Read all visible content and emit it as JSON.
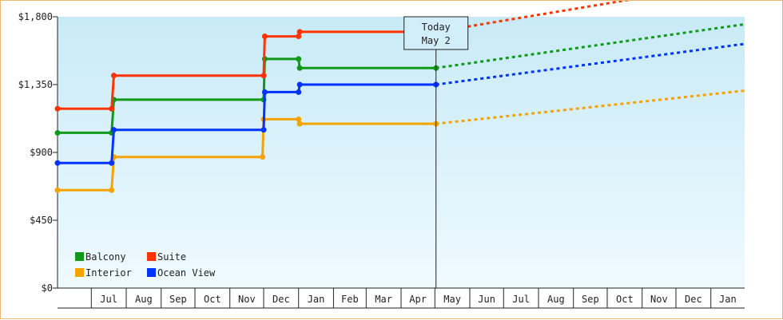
{
  "chart_data": {
    "type": "line",
    "step": true,
    "title": "",
    "xlabel": "",
    "ylabel": "",
    "ylim": [
      0,
      1800
    ],
    "yticks": [
      0,
      450,
      900,
      1350,
      1800
    ],
    "ytick_labels": [
      "$0",
      "$450",
      "$900",
      "$1,350",
      "$1,800"
    ],
    "x_months": [
      {
        "label": "Jul",
        "start": "2023-07-01"
      },
      {
        "label": "Aug",
        "start": "2023-08-01"
      },
      {
        "label": "Sep",
        "start": "2023-09-01"
      },
      {
        "label": "Oct",
        "start": "2023-10-01"
      },
      {
        "label": "Nov",
        "start": "2023-11-01"
      },
      {
        "label": "Dec",
        "start": "2023-12-01"
      },
      {
        "label": "Jan",
        "start": "2024-01-01"
      },
      {
        "label": "Feb",
        "start": "2024-02-01"
      },
      {
        "label": "Mar",
        "start": "2024-03-01"
      },
      {
        "label": "Apr",
        "start": "2024-04-01"
      },
      {
        "label": "May",
        "start": "2024-05-01"
      },
      {
        "label": "Jun",
        "start": "2024-06-01"
      },
      {
        "label": "Jul",
        "start": "2024-07-01"
      },
      {
        "label": "Aug",
        "start": "2024-08-01"
      },
      {
        "label": "Sep",
        "start": "2024-09-01"
      },
      {
        "label": "Oct",
        "start": "2024-10-01"
      },
      {
        "label": "Nov",
        "start": "2024-11-01"
      },
      {
        "label": "Dec",
        "start": "2024-12-01"
      },
      {
        "label": "Jan",
        "start": "2025-01-01"
      }
    ],
    "x_start": "2023-06-01",
    "x_end": "2025-01-31",
    "today": {
      "label_line1": "Today",
      "label_line2": "May 2",
      "date": "2024-05-02"
    },
    "grid": false,
    "legend_position": "bottom-left",
    "series": [
      {
        "name": "Balcony",
        "color": "#11991a",
        "points": [
          {
            "date": "2023-06-01",
            "value": 1030
          },
          {
            "date": "2023-07-19",
            "value": 1030
          },
          {
            "date": "2023-07-21",
            "value": 1250
          },
          {
            "date": "2023-12-01",
            "value": 1250
          },
          {
            "date": "2023-12-02",
            "value": 1520
          },
          {
            "date": "2024-01-01",
            "value": 1520
          },
          {
            "date": "2024-01-02",
            "value": 1460
          },
          {
            "date": "2024-05-02",
            "value": 1460
          }
        ],
        "forecast": [
          {
            "date": "2024-05-02",
            "value": 1460
          },
          {
            "date": "2025-01-31",
            "value": 1750
          }
        ]
      },
      {
        "name": "Suite",
        "color": "#ff3300",
        "points": [
          {
            "date": "2023-06-01",
            "value": 1190
          },
          {
            "date": "2023-07-19",
            "value": 1190
          },
          {
            "date": "2023-07-21",
            "value": 1410
          },
          {
            "date": "2023-12-01",
            "value": 1410
          },
          {
            "date": "2023-12-02",
            "value": 1670
          },
          {
            "date": "2024-01-01",
            "value": 1670
          },
          {
            "date": "2024-01-02",
            "value": 1700
          },
          {
            "date": "2024-05-02",
            "value": 1700
          }
        ],
        "forecast": [
          {
            "date": "2024-05-02",
            "value": 1700
          },
          {
            "date": "2025-01-31",
            "value": 2040
          }
        ]
      },
      {
        "name": "Interior",
        "color": "#f5a300",
        "points": [
          {
            "date": "2023-06-01",
            "value": 650
          },
          {
            "date": "2023-07-19",
            "value": 650
          },
          {
            "date": "2023-07-21",
            "value": 870
          },
          {
            "date": "2023-11-30",
            "value": 870
          },
          {
            "date": "2023-12-01",
            "value": 1120
          },
          {
            "date": "2024-01-01",
            "value": 1120
          },
          {
            "date": "2024-01-02",
            "value": 1090
          },
          {
            "date": "2024-05-02",
            "value": 1090
          }
        ],
        "forecast": [
          {
            "date": "2024-05-02",
            "value": 1090
          },
          {
            "date": "2025-01-31",
            "value": 1310
          }
        ]
      },
      {
        "name": "Ocean View",
        "color": "#0033ff",
        "points": [
          {
            "date": "2023-06-01",
            "value": 830
          },
          {
            "date": "2023-07-19",
            "value": 830
          },
          {
            "date": "2023-07-21",
            "value": 1050
          },
          {
            "date": "2023-12-01",
            "value": 1050
          },
          {
            "date": "2023-12-02",
            "value": 1300
          },
          {
            "date": "2024-01-01",
            "value": 1300
          },
          {
            "date": "2024-01-02",
            "value": 1350
          },
          {
            "date": "2024-05-02",
            "value": 1350
          }
        ],
        "forecast": [
          {
            "date": "2024-05-02",
            "value": 1350
          },
          {
            "date": "2025-01-31",
            "value": 1620
          }
        ]
      }
    ],
    "legend_order": [
      "Balcony",
      "Suite",
      "Interior",
      "Ocean View"
    ]
  }
}
